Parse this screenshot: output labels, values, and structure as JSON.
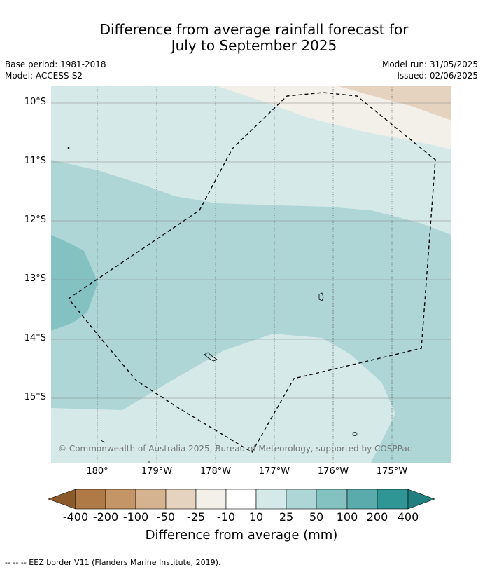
{
  "title_line1": "Difference from average rainfall forecast for",
  "title_line2": "July to September 2025",
  "meta": {
    "base_period": "Base period: 1981-2018",
    "model": "Model: ACCESS-S2",
    "model_run": "Model run: 31/05/2025",
    "issued": "Issued: 02/06/2025"
  },
  "lat_labels": [
    "10°S",
    "11°S",
    "12°S",
    "13°S",
    "14°S",
    "15°S"
  ],
  "lon_labels": [
    "180°",
    "179°W",
    "178°W",
    "177°W",
    "176°W",
    "175°W"
  ],
  "copyright": "© Commonwealth of Australia 2025, Bureau of Meteorology, supported by COSPPac",
  "colorbar": {
    "ticks": [
      "-400",
      "-200",
      "-100",
      "-50",
      "-25",
      "-10",
      "10",
      "25",
      "50",
      "100",
      "200",
      "400"
    ],
    "colors": [
      "#8b5a2b",
      "#b07a46",
      "#c49567",
      "#d6b390",
      "#e5d2bf",
      "#f3efe9",
      "#ffffff",
      "#d5e9e8",
      "#aed6d6",
      "#84c2c2",
      "#5aabab",
      "#2f9595",
      "#217f7f"
    ],
    "title": "Difference from average (mm)"
  },
  "footer": "--  --  -- EEZ border V11 (Flanders Marine Institute, 2019)."
}
